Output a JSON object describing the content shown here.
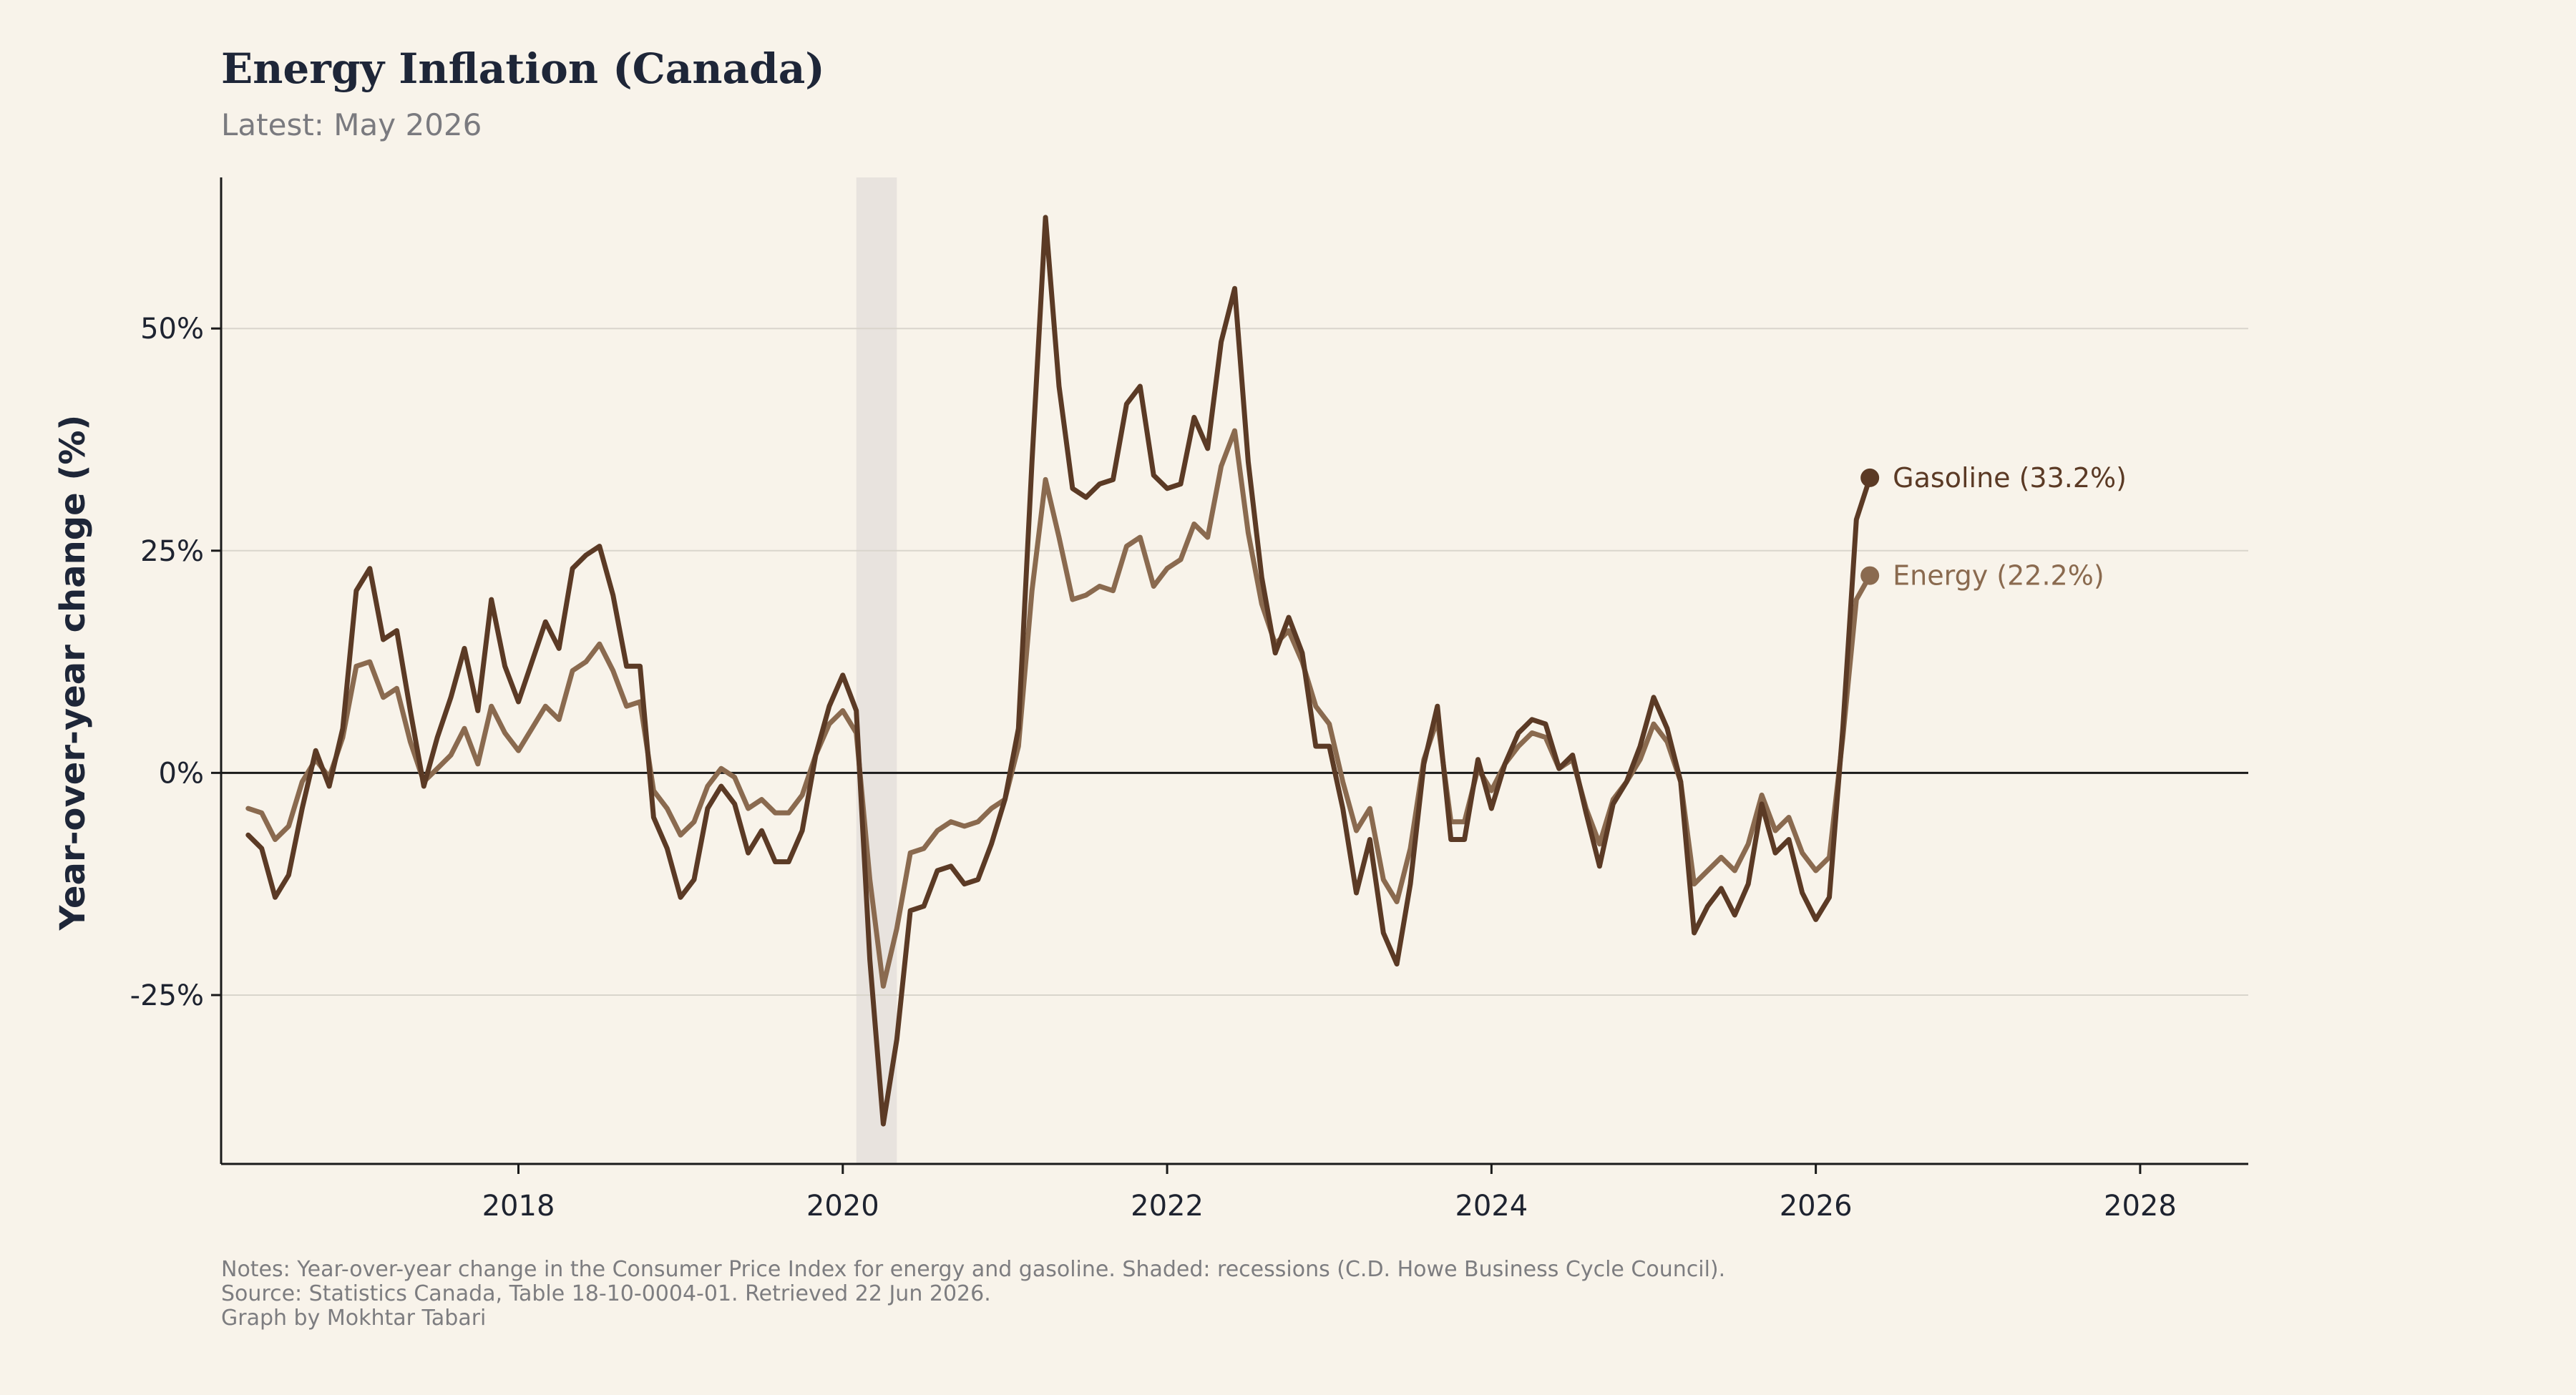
{
  "title": "Energy Inflation (Canada)",
  "subtitle": "Latest: May 2026",
  "notes": [
    "Notes: Year-over-year change in the Consumer Price Index for energy and gasoline. Shaded: recessions (C.D. Howe Business Cycle Council).",
    "Source: Statistics Canada, Table 18-10-0004-01. Retrieved 22 Jun 2026.",
    "Graph by Mokhtar Tabari"
  ],
  "colors": {
    "background": "#f8f3ea",
    "gasoline": "#5b3a25",
    "energy": "#8a6a4f",
    "recession": "#e8e3de",
    "grid": "#d9d5cc",
    "axis": "#1a1a1a"
  },
  "chart_data": {
    "type": "line",
    "title": "Energy Inflation (Canada)",
    "subtitle": "Latest: May 2026",
    "ylabel": "Year-over-year change (%)",
    "xlabel": "",
    "x_ticks": [
      "2018",
      "2020",
      "2022",
      "2024",
      "2026",
      "2028"
    ],
    "y_ticks": [
      "-25%",
      "0%",
      "25%",
      "50%"
    ],
    "xlim": [
      "2016-03",
      "2028-09"
    ],
    "ylim": [
      -44,
      67
    ],
    "grid": "horizontal",
    "zero_line": true,
    "legend": "end-of-line labels",
    "recessions": [
      {
        "start": "2020-02",
        "end": "2020-04"
      }
    ],
    "start_month": "2016-05",
    "series": [
      {
        "name": "Gasoline",
        "end_label": "Gasoline (33.2%)",
        "values": [
          -7,
          -8.5,
          -14,
          -11.5,
          -4,
          2.5,
          -1.5,
          5,
          20.5,
          23,
          15,
          16,
          7,
          -1.5,
          4,
          8.5,
          14,
          7,
          19.5,
          12,
          8,
          12.5,
          17,
          14,
          23,
          24.5,
          25.5,
          20,
          12,
          12,
          -5,
          -8.5,
          -14,
          -12,
          -4,
          -1.5,
          -3.5,
          -9,
          -6.5,
          -10,
          -10,
          -6.5,
          2,
          7.5,
          11,
          7,
          -21,
          -39.5,
          -30,
          -15.5,
          -15,
          -11,
          -10.5,
          -12.5,
          -12,
          -8,
          -3,
          5,
          35,
          62.5,
          43.5,
          32,
          31,
          32.5,
          33,
          41.5,
          43.5,
          33.5,
          32,
          32.5,
          40,
          36.5,
          48.5,
          54.5,
          35,
          22,
          13.5,
          17.5,
          13.5,
          3,
          3,
          -4,
          -13.5,
          -7.5,
          -18,
          -21.5,
          -12.5,
          1,
          7.5,
          -7.5,
          -7.5,
          1.5,
          -4,
          1,
          4.5,
          6,
          5.5,
          0.5,
          2,
          -4.5,
          -10.5,
          -3.5,
          -1,
          3,
          8.5,
          5,
          -1,
          -18,
          -15,
          -13,
          -16,
          -12.5,
          -3.5,
          -9,
          -7.5,
          -13.5,
          -16.5,
          -14,
          5,
          28.5,
          33.2
        ]
      },
      {
        "name": "Energy",
        "end_label": "Energy (22.2%)",
        "values": [
          -4,
          -4.5,
          -7.5,
          -6,
          -1,
          1.5,
          -0.5,
          4,
          12,
          12.5,
          8.5,
          9.5,
          3.5,
          -1,
          0.5,
          2,
          5,
          1,
          7.5,
          4.5,
          2.5,
          5,
          7.5,
          6,
          11.5,
          12.5,
          14.5,
          11.5,
          7.5,
          8,
          -2,
          -4,
          -7,
          -5.5,
          -1.5,
          0.5,
          -0.5,
          -4,
          -3,
          -4.5,
          -4.5,
          -2.5,
          2,
          5.5,
          7,
          4.5,
          -12,
          -24,
          -17.5,
          -9,
          -8.5,
          -6.5,
          -5.5,
          -6,
          -5.5,
          -4,
          -3,
          3,
          20.5,
          33,
          26.5,
          19.5,
          20,
          21,
          20.5,
          25.5,
          26.5,
          21,
          23,
          24,
          28,
          26.5,
          34.5,
          38.5,
          27,
          19,
          14.5,
          16,
          12.5,
          7.5,
          5.5,
          -1,
          -6.5,
          -4,
          -12,
          -14.5,
          -8.5,
          1.5,
          6,
          -5.5,
          -5.5,
          0.5,
          -2,
          1,
          3,
          4.5,
          4,
          0.5,
          1.5,
          -4,
          -8,
          -3,
          -1,
          1.5,
          5.5,
          3.5,
          -1,
          -12.5,
          -11,
          -9.5,
          -11,
          -8,
          -2.5,
          -6.5,
          -5,
          -9,
          -11,
          -9.5,
          4,
          19.5,
          22.2
        ]
      }
    ]
  }
}
